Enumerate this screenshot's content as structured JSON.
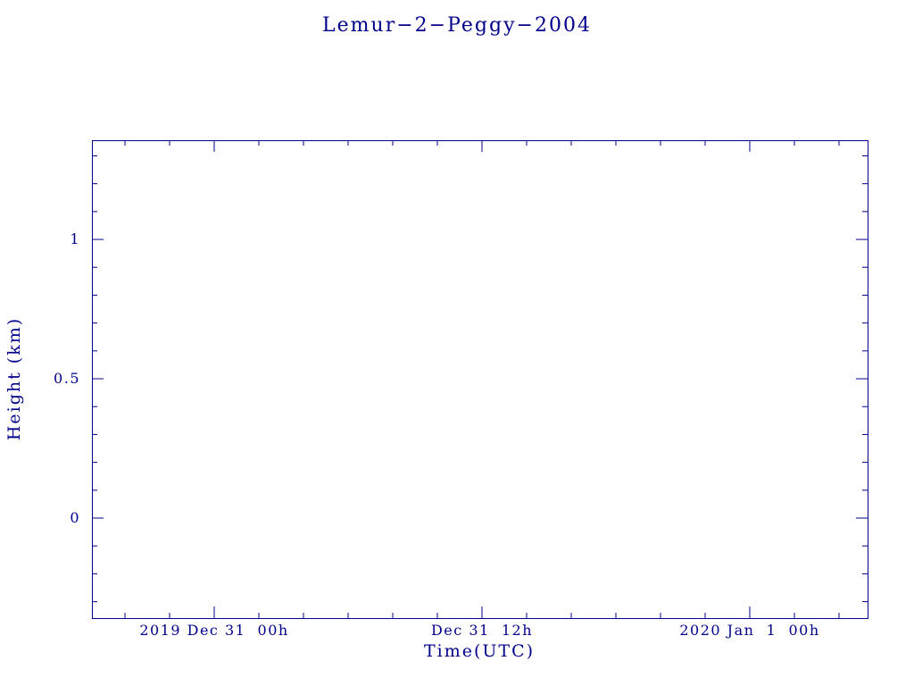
{
  "colors": {
    "axis": "#00008B",
    "background": "#FFFFFF"
  },
  "chart_data": {
    "type": "line",
    "title": "Lemur−2−Peggy−2004",
    "xlabel": "Time(UTC)",
    "ylabel": "Height (km)",
    "x_ticks": [
      {
        "hours": 0,
        "label": "2019 Dec 31  00h"
      },
      {
        "hours": 12,
        "label": "Dec 31  12h"
      },
      {
        "hours": 24,
        "label": "2020 Jan  1  00h"
      }
    ],
    "x_range_hours": [
      -5.48,
      29.28
    ],
    "x_minor_step_hours": 2,
    "y_ticks": [
      {
        "value": 0,
        "label": "0"
      },
      {
        "value": 0.5,
        "label": "0.5"
      },
      {
        "value": 1,
        "label": "1"
      }
    ],
    "ylim": [
      -0.359,
      1.356
    ],
    "y_minor_step": 0.1,
    "grid": false,
    "legend": null,
    "series": []
  }
}
